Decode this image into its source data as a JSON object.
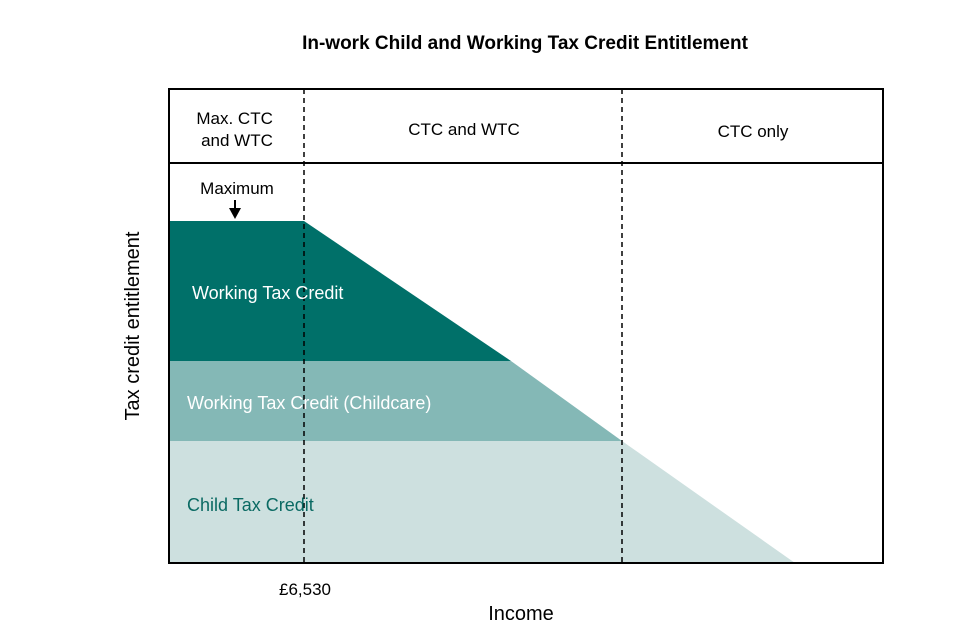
{
  "chart_data": {
    "type": "area",
    "title": "In-work Child and Working Tax Credit Entitlement",
    "xlabel": "Income",
    "ylabel": "Tax credit entitlement",
    "x_tick_labels": [
      "£6,530"
    ],
    "zones": [
      {
        "label_lines": [
          "Max. CTC",
          "and WTC"
        ]
      },
      {
        "label_lines": [
          "CTC and WTC"
        ]
      },
      {
        "label_lines": [
          "CTC only"
        ]
      }
    ],
    "annotation": {
      "text": "Maximum"
    },
    "series": [
      {
        "name": "Working Tax Credit",
        "color": "#007069"
      },
      {
        "name": "Working Tax Credit (Childcare)",
        "color": "#84b8b6"
      },
      {
        "name": "Child Tax Credit",
        "color": "#cde0df"
      }
    ],
    "label_colors": {
      "Working Tax Credit": "#ffffff",
      "Working Tax Credit (Childcare)": "#ffffff",
      "Child Tax Credit": "#0a6a63"
    },
    "grid": false
  }
}
